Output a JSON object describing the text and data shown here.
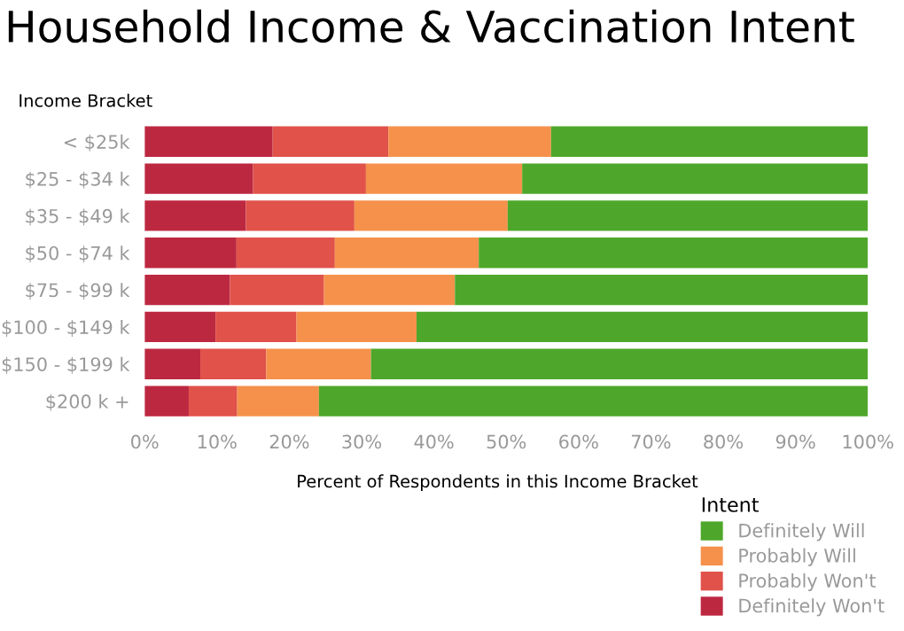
{
  "chart_data": {
    "type": "bar",
    "orientation": "horizontal",
    "stacked": true,
    "title": "Household Income & Vaccination Intent",
    "ylabel": "Income Bracket",
    "xlabel": "Percent of Respondents in this Income Bracket",
    "legend_title": "Intent",
    "categories": [
      "< $25k",
      "$25 - $34 k",
      "$35 - $49 k",
      "$50 - $74 k",
      "$75 - $99 k",
      "$100 - $149 k",
      "$150 - $199 k",
      "$200 k +"
    ],
    "series": [
      {
        "name": "Definitely Won't",
        "color": "#bd2841",
        "values": [
          17.7,
          15.0,
          14.0,
          12.7,
          11.8,
          9.8,
          7.7,
          6.1
        ]
      },
      {
        "name": "Probably Won't",
        "color": "#e0524a",
        "values": [
          16.0,
          15.6,
          15.0,
          13.6,
          13.0,
          11.2,
          9.1,
          6.7
        ]
      },
      {
        "name": "Probably Will",
        "color": "#f5914b",
        "values": [
          22.5,
          21.6,
          21.2,
          19.9,
          18.1,
          16.6,
          14.5,
          11.3
        ]
      },
      {
        "name": "Definitely Will",
        "color": "#4ea72a",
        "values": [
          43.8,
          47.8,
          49.8,
          53.8,
          57.1,
          62.4,
          68.7,
          75.9
        ]
      }
    ],
    "xlim": [
      0,
      100
    ],
    "xticks": [
      {
        "value": 0,
        "label": "0%"
      },
      {
        "value": 10,
        "label": "10%"
      },
      {
        "value": 20,
        "label": "20%"
      },
      {
        "value": 30,
        "label": "30%"
      },
      {
        "value": 40,
        "label": "40%"
      },
      {
        "value": 50,
        "label": "50%"
      },
      {
        "value": 60,
        "label": "60%"
      },
      {
        "value": 70,
        "label": "70%"
      },
      {
        "value": 80,
        "label": "80%"
      },
      {
        "value": 90,
        "label": "90%"
      },
      {
        "value": 100,
        "label": "100%"
      }
    ],
    "grid": false,
    "legend": "bottom right"
  }
}
